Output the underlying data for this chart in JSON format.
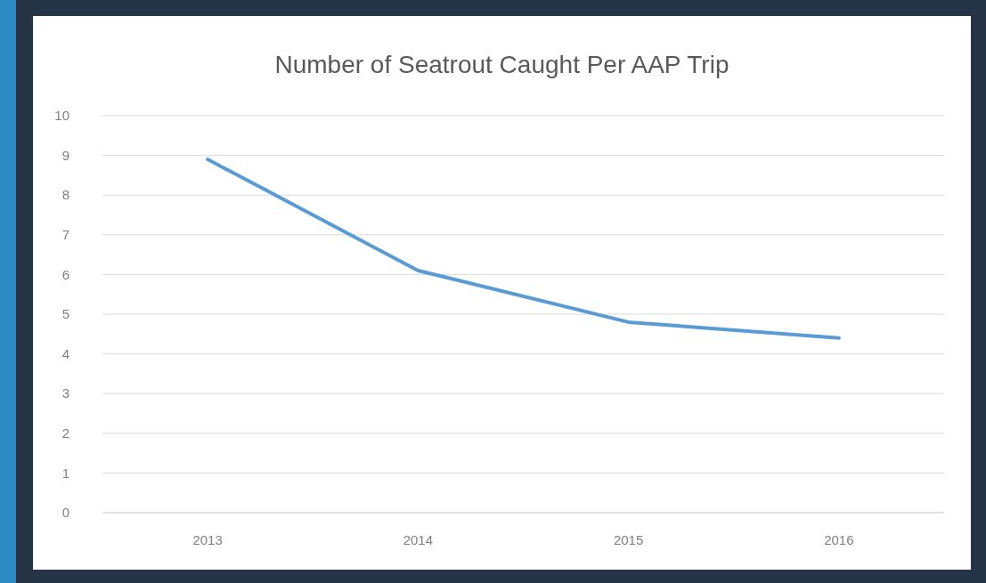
{
  "chart_data": {
    "type": "line",
    "title": "Number of Seatrout Caught Per AAP Trip",
    "categories": [
      "2013",
      "2014",
      "2015",
      "2016"
    ],
    "series": [
      {
        "color": "#5b9bd5",
        "values": [
          8.9,
          6.1,
          4.8,
          4.4
        ]
      }
    ],
    "ylim": [
      0,
      10
    ],
    "yticks": [
      0,
      1,
      2,
      3,
      4,
      5,
      6,
      7,
      8,
      9,
      10
    ],
    "grid": "y"
  }
}
